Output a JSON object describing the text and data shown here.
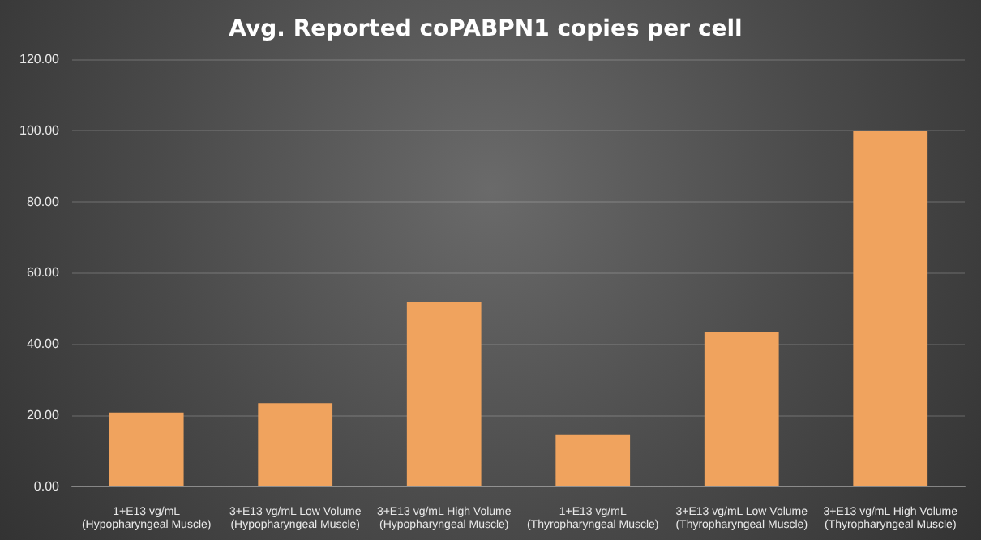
{
  "chart_data": {
    "type": "bar",
    "title": "Avg. Reported coPABPN1 copies per cell",
    "categories": [
      "1+E13 vg/mL\n(Hypopharyngeal Muscle)",
      "3+E13 vg/mL Low Volume\n(Hypopharyngeal Muscle)",
      "3+E13 vg/mL High Volume\n(Hypopharyngeal Muscle)",
      "1+E13 vg/mL\n(Thyropharyngeal Muscle)",
      "3+E13 vg/mL Low Volume\n(Thyropharyngeal Muscle)",
      "3+E13 vg/mL High Volume\n(Thyropharyngeal Muscle)"
    ],
    "values": [
      20.9,
      23.5,
      52.0,
      14.7,
      43.4,
      100
    ],
    "color": "#f0a35e",
    "ylim": [
      0,
      120
    ],
    "yticks": [
      {
        "value": 0,
        "label": "0.00"
      },
      {
        "value": 20,
        "label": "20.00"
      },
      {
        "value": 40,
        "label": "40.00"
      },
      {
        "value": 60,
        "label": "60.00"
      },
      {
        "value": 80,
        "label": "80.00"
      },
      {
        "value": 100,
        "label": "100.00"
      },
      {
        "value": 120,
        "label": "120.00"
      }
    ],
    "grid": "y"
  }
}
